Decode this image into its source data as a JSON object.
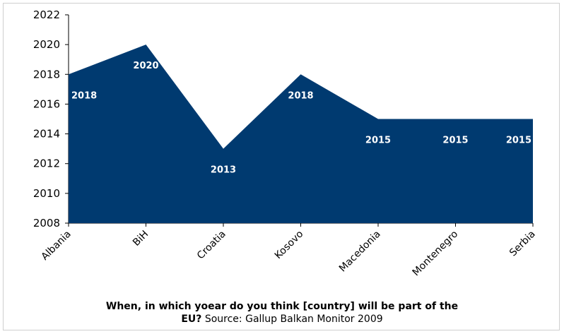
{
  "chart_data": {
    "type": "area",
    "categories": [
      "Albania",
      "BiH",
      "Croatia",
      "Kosovo",
      "Macedonia",
      "Montenegro",
      "Serbia"
    ],
    "values": [
      2018,
      2020,
      2013,
      2018,
      2015,
      2015,
      2015
    ],
    "data_labels": [
      "2018",
      "2020",
      "2013",
      "2018",
      "2015",
      "2015",
      "2015"
    ],
    "ylim": [
      2008,
      2022
    ],
    "yticks": [
      "2008",
      "2010",
      "2012",
      "2014",
      "2016",
      "2018",
      "2020",
      "2022"
    ],
    "color": "#003a70",
    "grid": false,
    "legend": "none"
  },
  "caption": {
    "line1": "When, in which yoear do you think [country] will be part of the",
    "line2_bold": "EU?",
    "line2_rest": " Source: Gallup Balkan Monitor 2009"
  }
}
